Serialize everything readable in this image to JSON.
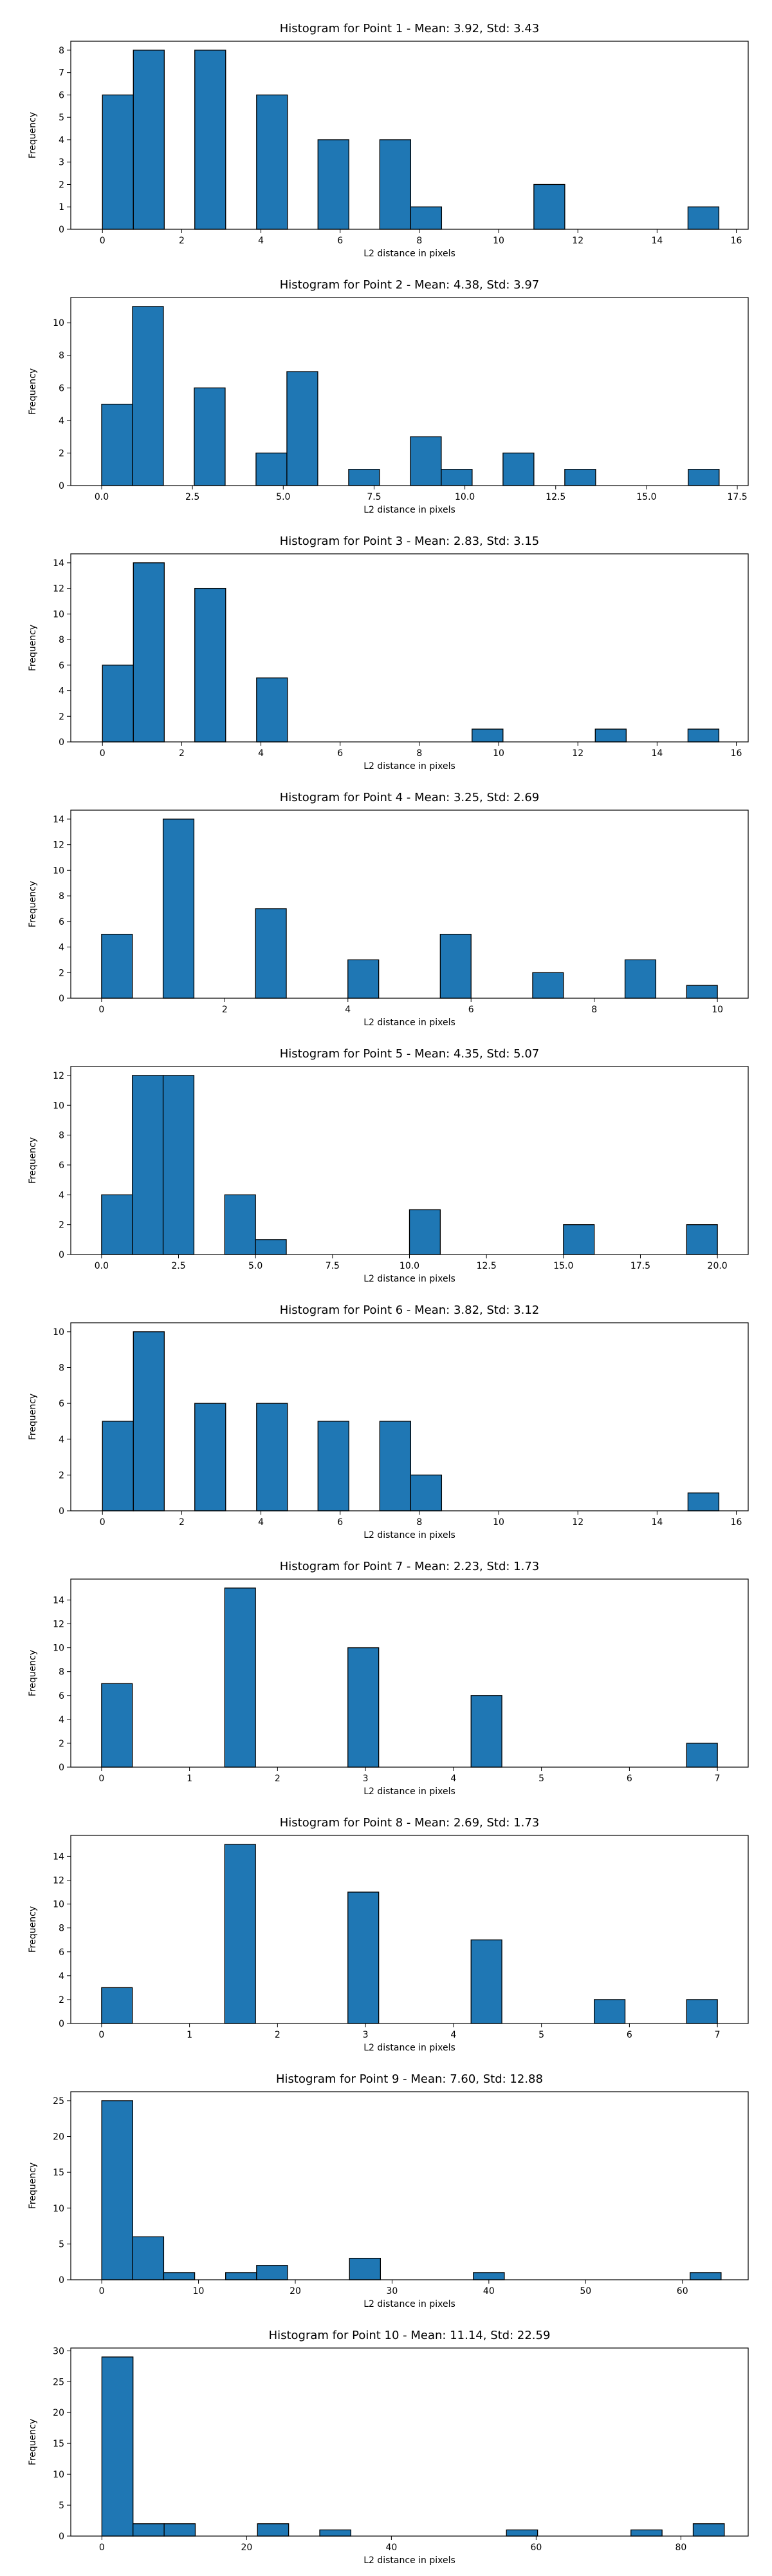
{
  "colors": {
    "bar": "#1f77b4",
    "edge": "#000000",
    "axis": "#000000",
    "background": "#ffffff"
  },
  "chart_data": [
    {
      "type": "bar",
      "title": "Histogram for Point 1 - Mean: 3.92, Std: 3.43",
      "xlabel": "L2 distance in pixels",
      "ylabel": "Frequency",
      "xlim": [
        -0.8,
        16.3
      ],
      "ylim": [
        0,
        8.4
      ],
      "xticks": [
        0,
        2,
        4,
        6,
        8,
        10,
        12,
        14,
        16
      ],
      "xtick_labels": [
        "0",
        "2",
        "4",
        "6",
        "8",
        "10",
        "12",
        "14",
        "16"
      ],
      "yticks": [
        0,
        1,
        2,
        3,
        4,
        5,
        6,
        7,
        8
      ],
      "ytick_labels": [
        "0",
        "1",
        "2",
        "3",
        "4",
        "5",
        "6",
        "7",
        "8"
      ],
      "bins": [
        [
          0.0,
          0.78,
          6
        ],
        [
          0.78,
          1.56,
          8
        ],
        [
          2.33,
          3.11,
          8
        ],
        [
          3.89,
          4.67,
          6
        ],
        [
          5.44,
          6.22,
          4
        ],
        [
          7.0,
          7.78,
          4
        ],
        [
          7.78,
          8.56,
          1
        ],
        [
          10.89,
          11.67,
          2
        ],
        [
          14.78,
          15.56,
          1
        ]
      ],
      "grid": false
    },
    {
      "type": "bar",
      "title": "Histogram for Point 2 - Mean: 4.38, Std: 3.97",
      "xlabel": "L2 distance in pixels",
      "ylabel": "Frequency",
      "xlim": [
        -0.85,
        17.8
      ],
      "ylim": [
        0,
        11.55
      ],
      "xticks": [
        0,
        2.5,
        5,
        7.5,
        10,
        12.5,
        15,
        17.5
      ],
      "xtick_labels": [
        "0.0",
        "2.5",
        "5.0",
        "7.5",
        "10.0",
        "12.5",
        "15.0",
        "17.5"
      ],
      "yticks": [
        0,
        2,
        4,
        6,
        8,
        10
      ],
      "ytick_labels": [
        "0",
        "2",
        "4",
        "6",
        "8",
        "10"
      ],
      "bins": [
        [
          0.0,
          0.85,
          5
        ],
        [
          0.85,
          1.7,
          11
        ],
        [
          2.55,
          3.4,
          6
        ],
        [
          4.25,
          5.1,
          2
        ],
        [
          5.1,
          5.95,
          7
        ],
        [
          6.8,
          7.65,
          1
        ],
        [
          8.5,
          9.35,
          3
        ],
        [
          9.35,
          10.2,
          1
        ],
        [
          11.05,
          11.9,
          2
        ],
        [
          12.75,
          13.6,
          1
        ],
        [
          16.15,
          17.0,
          1
        ]
      ],
      "grid": false
    },
    {
      "type": "bar",
      "title": "Histogram for Point 3 - Mean: 2.83, Std: 3.15",
      "xlabel": "L2 distance in pixels",
      "ylabel": "Frequency",
      "xlim": [
        -0.8,
        16.3
      ],
      "ylim": [
        0,
        14.7
      ],
      "xticks": [
        0,
        2,
        4,
        6,
        8,
        10,
        12,
        14,
        16
      ],
      "xtick_labels": [
        "0",
        "2",
        "4",
        "6",
        "8",
        "10",
        "12",
        "14",
        "16"
      ],
      "yticks": [
        0,
        2,
        4,
        6,
        8,
        10,
        12,
        14
      ],
      "ytick_labels": [
        "0",
        "2",
        "4",
        "6",
        "8",
        "10",
        "12",
        "14"
      ],
      "bins": [
        [
          0.0,
          0.78,
          6
        ],
        [
          0.78,
          1.56,
          14
        ],
        [
          2.33,
          3.11,
          12
        ],
        [
          3.89,
          4.67,
          5
        ],
        [
          9.33,
          10.11,
          1
        ],
        [
          12.44,
          13.22,
          1
        ],
        [
          14.78,
          15.56,
          1
        ]
      ],
      "grid": false
    },
    {
      "type": "bar",
      "title": "Histogram for Point 4 - Mean: 3.25, Std: 2.69",
      "xlabel": "L2 distance in pixels",
      "ylabel": "Frequency",
      "xlim": [
        -0.5,
        10.5
      ],
      "ylim": [
        0,
        14.7
      ],
      "xticks": [
        0,
        2,
        4,
        6,
        8,
        10
      ],
      "xtick_labels": [
        "0",
        "2",
        "4",
        "6",
        "8",
        "10"
      ],
      "yticks": [
        0,
        2,
        4,
        6,
        8,
        10,
        12,
        14
      ],
      "ytick_labels": [
        "0",
        "2",
        "4",
        "6",
        "8",
        "10",
        "12",
        "14"
      ],
      "bins": [
        [
          0.0,
          0.5,
          5
        ],
        [
          1.0,
          1.5,
          14
        ],
        [
          2.5,
          3.0,
          7
        ],
        [
          4.0,
          4.5,
          3
        ],
        [
          5.5,
          6.0,
          5
        ],
        [
          7.0,
          7.5,
          2
        ],
        [
          8.5,
          9.0,
          3
        ],
        [
          9.5,
          10.0,
          1
        ]
      ],
      "grid": false
    },
    {
      "type": "bar",
      "title": "Histogram for Point 5 - Mean: 4.35, Std: 5.07",
      "xlabel": "L2 distance in pixels",
      "ylabel": "Frequency",
      "xlim": [
        -1.0,
        21.0
      ],
      "ylim": [
        0,
        12.6
      ],
      "xticks": [
        0,
        2.5,
        5,
        7.5,
        10,
        12.5,
        15,
        17.5,
        20
      ],
      "xtick_labels": [
        "0.0",
        "2.5",
        "5.0",
        "7.5",
        "10.0",
        "12.5",
        "15.0",
        "17.5",
        "20.0"
      ],
      "yticks": [
        0,
        2,
        4,
        6,
        8,
        10,
        12
      ],
      "ytick_labels": [
        "0",
        "2",
        "4",
        "6",
        "8",
        "10",
        "12"
      ],
      "bins": [
        [
          0.0,
          1.0,
          4
        ],
        [
          1.0,
          2.0,
          12
        ],
        [
          2.0,
          3.0,
          12
        ],
        [
          4.0,
          5.0,
          4
        ],
        [
          5.0,
          6.0,
          1
        ],
        [
          10.0,
          11.0,
          3
        ],
        [
          15.0,
          16.0,
          2
        ],
        [
          19.0,
          20.0,
          2
        ]
      ],
      "grid": false
    },
    {
      "type": "bar",
      "title": "Histogram for Point 6 - Mean: 3.82, Std: 3.12",
      "xlabel": "L2 distance in pixels",
      "ylabel": "Frequency",
      "xlim": [
        -0.8,
        16.3
      ],
      "ylim": [
        0,
        10.5
      ],
      "xticks": [
        0,
        2,
        4,
        6,
        8,
        10,
        12,
        14,
        16
      ],
      "xtick_labels": [
        "0",
        "2",
        "4",
        "6",
        "8",
        "10",
        "12",
        "14",
        "16"
      ],
      "yticks": [
        0,
        2,
        4,
        6,
        8,
        10
      ],
      "ytick_labels": [
        "0",
        "2",
        "4",
        "6",
        "8",
        "10"
      ],
      "bins": [
        [
          0.0,
          0.78,
          5
        ],
        [
          0.78,
          1.56,
          10
        ],
        [
          2.33,
          3.11,
          6
        ],
        [
          3.89,
          4.67,
          6
        ],
        [
          5.44,
          6.22,
          5
        ],
        [
          7.0,
          7.78,
          5
        ],
        [
          7.78,
          8.56,
          2
        ],
        [
          14.78,
          15.56,
          1
        ]
      ],
      "grid": false
    },
    {
      "type": "bar",
      "title": "Histogram for Point 7 - Mean: 2.23, Std: 1.73",
      "xlabel": "L2 distance in pixels",
      "ylabel": "Frequency",
      "xlim": [
        -0.35,
        7.35
      ],
      "ylim": [
        0,
        15.75
      ],
      "xticks": [
        0,
        1,
        2,
        3,
        4,
        5,
        6,
        7
      ],
      "xtick_labels": [
        "0",
        "1",
        "2",
        "3",
        "4",
        "5",
        "6",
        "7"
      ],
      "yticks": [
        0,
        2,
        4,
        6,
        8,
        10,
        12,
        14
      ],
      "ytick_labels": [
        "0",
        "2",
        "4",
        "6",
        "8",
        "10",
        "12",
        "14"
      ],
      "bins": [
        [
          0.0,
          0.35,
          7
        ],
        [
          1.4,
          1.75,
          15
        ],
        [
          2.8,
          3.15,
          10
        ],
        [
          4.2,
          4.55,
          6
        ],
        [
          6.65,
          7.0,
          2
        ]
      ],
      "grid": false
    },
    {
      "type": "bar",
      "title": "Histogram for Point 8 - Mean: 2.69, Std: 1.73",
      "xlabel": "L2 distance in pixels",
      "ylabel": "Frequency",
      "xlim": [
        -0.35,
        7.35
      ],
      "ylim": [
        0,
        15.75
      ],
      "xticks": [
        0,
        1,
        2,
        3,
        4,
        5,
        6,
        7
      ],
      "xtick_labels": [
        "0",
        "1",
        "2",
        "3",
        "4",
        "5",
        "6",
        "7"
      ],
      "yticks": [
        0,
        2,
        4,
        6,
        8,
        10,
        12,
        14
      ],
      "ytick_labels": [
        "0",
        "2",
        "4",
        "6",
        "8",
        "10",
        "12",
        "14"
      ],
      "bins": [
        [
          0.0,
          0.35,
          3
        ],
        [
          1.4,
          1.75,
          15
        ],
        [
          2.8,
          3.15,
          11
        ],
        [
          4.2,
          4.55,
          7
        ],
        [
          5.6,
          5.95,
          2
        ],
        [
          6.65,
          7.0,
          2
        ]
      ],
      "grid": false
    },
    {
      "type": "bar",
      "title": "Histogram for Point 9 - Mean: 7.60, Std: 12.88",
      "xlabel": "L2 distance in pixels",
      "ylabel": "Frequency",
      "xlim": [
        -3.2,
        66.8
      ],
      "ylim": [
        0,
        26.25
      ],
      "xticks": [
        0,
        10,
        20,
        30,
        40,
        50,
        60
      ],
      "xtick_labels": [
        "0",
        "10",
        "20",
        "30",
        "40",
        "50",
        "60"
      ],
      "yticks": [
        0,
        5,
        10,
        15,
        20,
        25
      ],
      "ytick_labels": [
        "0",
        "5",
        "10",
        "15",
        "20",
        "25"
      ],
      "bins": [
        [
          0.0,
          3.2,
          25
        ],
        [
          3.2,
          6.4,
          6
        ],
        [
          6.4,
          9.6,
          1
        ],
        [
          12.8,
          16.0,
          1
        ],
        [
          16.0,
          19.2,
          2
        ],
        [
          25.6,
          28.8,
          3
        ],
        [
          38.4,
          41.6,
          1
        ],
        [
          60.8,
          64.0,
          1
        ]
      ],
      "grid": false
    },
    {
      "type": "bar",
      "title": "Histogram for Point 10 - Mean: 11.14, Std: 22.59",
      "xlabel": "L2 distance in pixels",
      "ylabel": "Frequency",
      "xlim": [
        -4.3,
        89.3
      ],
      "ylim": [
        0,
        30.45
      ],
      "xticks": [
        0,
        20,
        40,
        60,
        80
      ],
      "xtick_labels": [
        "0",
        "20",
        "40",
        "60",
        "80"
      ],
      "yticks": [
        0,
        5,
        10,
        15,
        20,
        25,
        30
      ],
      "ytick_labels": [
        "0",
        "5",
        "10",
        "15",
        "20",
        "25",
        "30"
      ],
      "bins": [
        [
          0.0,
          4.3,
          29
        ],
        [
          4.3,
          8.6,
          2
        ],
        [
          8.6,
          12.9,
          2
        ],
        [
          21.5,
          25.8,
          2
        ],
        [
          30.1,
          34.4,
          1
        ],
        [
          55.9,
          60.2,
          1
        ],
        [
          73.1,
          77.4,
          1
        ],
        [
          81.7,
          86.0,
          2
        ]
      ],
      "grid": false
    }
  ]
}
